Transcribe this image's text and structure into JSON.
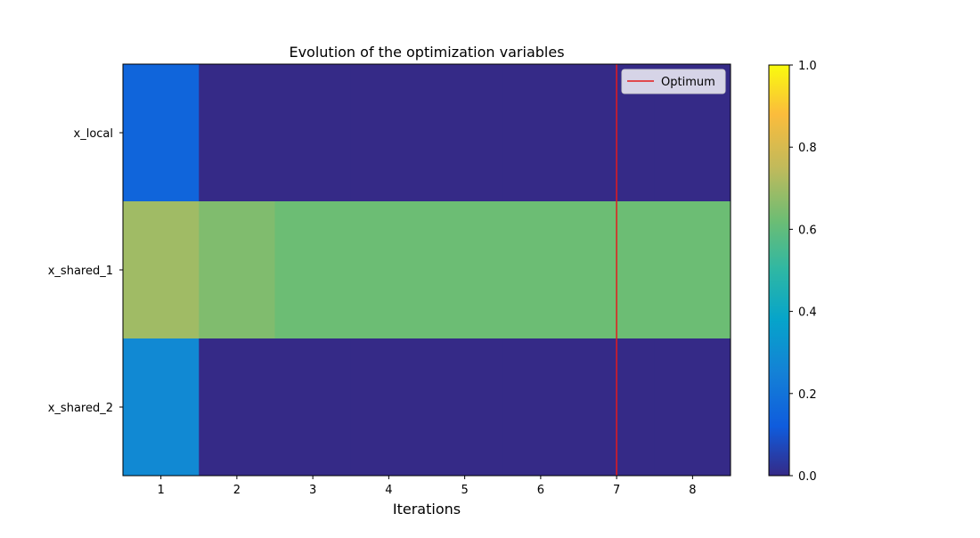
{
  "chart_data": {
    "type": "heatmap",
    "title": "Evolution of the optimization variables",
    "xlabel": "Iterations",
    "ylabel": "",
    "x_ticks": [
      "1",
      "2",
      "3",
      "4",
      "5",
      "6",
      "7",
      "8"
    ],
    "y_labels": [
      "x_local",
      "x_shared_1",
      "x_shared_2"
    ],
    "values": [
      [
        0.15,
        0.0,
        0.0,
        0.0,
        0.0,
        0.0,
        0.0,
        0.0
      ],
      [
        0.7,
        0.65,
        0.62,
        0.62,
        0.62,
        0.62,
        0.62,
        0.62
      ],
      [
        0.28,
        0.0,
        0.0,
        0.0,
        0.0,
        0.0,
        0.0,
        0.0
      ]
    ],
    "optimum_iteration": 7,
    "legend": {
      "label": "Optimum",
      "color": "#e41a1c",
      "placement": "upper right"
    },
    "colorbar": {
      "range": [
        0,
        1
      ],
      "ticks": [
        "0.0",
        "0.2",
        "0.4",
        "0.6",
        "0.8",
        "1.0"
      ],
      "colormap": "parula"
    }
  }
}
